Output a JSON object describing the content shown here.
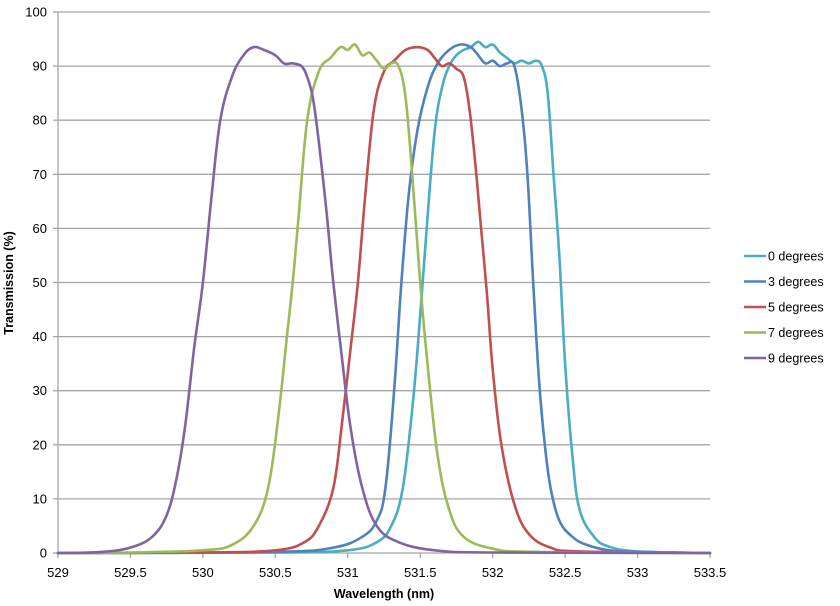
{
  "chart_data": {
    "type": "line",
    "title": "",
    "xlabel": "Wavelength (nm)",
    "ylabel": "Transmission (%)",
    "xlim": [
      529,
      533.5
    ],
    "ylim": [
      0,
      100
    ],
    "x_ticks": [
      529,
      529.5,
      530,
      530.5,
      531,
      531.5,
      532,
      532.5,
      533,
      533.5
    ],
    "x_tick_labels": [
      "529",
      "529.5",
      "530",
      "530.5",
      "531",
      "531.5",
      "532",
      "532.5",
      "533",
      "533.5"
    ],
    "y_ticks": [
      0,
      10,
      20,
      30,
      40,
      50,
      60,
      70,
      80,
      90,
      100
    ],
    "y_tick_labels": [
      "0",
      "10",
      "20",
      "30",
      "40",
      "50",
      "60",
      "70",
      "80",
      "90",
      "100"
    ],
    "grid": {
      "horizontal": true,
      "vertical": false
    },
    "legend_position": "right",
    "series": [
      {
        "name": "0 degrees",
        "color": "#4BACC6",
        "x": [
          529,
          530.5,
          531.0,
          531.2,
          531.3,
          531.38,
          531.45,
          531.5,
          531.55,
          531.6,
          531.65,
          531.7,
          531.75,
          531.8,
          531.85,
          531.9,
          531.95,
          532.0,
          532.05,
          532.1,
          532.15,
          532.2,
          532.25,
          532.3,
          532.34,
          532.38,
          532.42,
          532.46,
          532.5,
          532.55,
          532.6,
          532.7,
          532.8,
          533.0,
          533.5
        ],
        "values": [
          0,
          0.1,
          0.5,
          2,
          5,
          12,
          28,
          44,
          62,
          78,
          86,
          90,
          92,
          93,
          93.5,
          94.5,
          93.5,
          94,
          92.5,
          91.5,
          90.5,
          91,
          90.5,
          91,
          90,
          85,
          70,
          55,
          35,
          18,
          8,
          3,
          1.2,
          0.3,
          0
        ]
      },
      {
        "name": "3 degrees",
        "color": "#4F81BD",
        "x": [
          529,
          530.5,
          530.9,
          531.1,
          531.2,
          531.26,
          531.32,
          531.37,
          531.42,
          531.48,
          531.55,
          531.62,
          531.7,
          531.78,
          531.85,
          531.9,
          531.95,
          532.0,
          532.05,
          532.1,
          532.15,
          532.2,
          532.24,
          532.28,
          532.32,
          532.36,
          532.4,
          532.46,
          532.55,
          532.65,
          532.8,
          533.0,
          533.5
        ],
        "values": [
          0,
          0.2,
          1,
          3,
          6,
          12,
          30,
          50,
          66,
          78,
          86,
          90.5,
          93,
          94,
          93.5,
          92,
          90.5,
          91,
          90,
          90.5,
          90,
          82,
          70,
          50,
          32,
          20,
          12,
          6,
          3,
          1.5,
          0.5,
          0.2,
          0
        ]
      },
      {
        "name": "5 degrees",
        "color": "#C0504D",
        "x": [
          529,
          530.0,
          530.5,
          530.7,
          530.8,
          530.9,
          530.96,
          531.02,
          531.07,
          531.12,
          531.18,
          531.25,
          531.32,
          531.4,
          531.48,
          531.55,
          531.6,
          531.65,
          531.7,
          531.75,
          531.8,
          531.84,
          531.88,
          531.92,
          531.96,
          532.0,
          532.06,
          532.15,
          532.25,
          532.4,
          532.6,
          533.5
        ],
        "values": [
          0,
          0.1,
          0.5,
          2,
          5,
          12,
          24,
          38,
          50,
          66,
          82,
          89,
          91,
          93,
          93.5,
          93,
          91.5,
          90,
          90.5,
          89.5,
          88,
          82,
          72,
          60,
          48,
          34,
          20,
          9,
          3.5,
          1,
          0.3,
          0
        ]
      },
      {
        "name": "7 degrees",
        "color": "#9BBB59",
        "x": [
          529,
          529.5,
          530.0,
          530.2,
          530.35,
          530.45,
          530.52,
          530.58,
          530.62,
          530.66,
          530.72,
          530.8,
          530.88,
          530.95,
          531.0,
          531.05,
          531.1,
          531.15,
          531.2,
          531.25,
          531.3,
          531.35,
          531.4,
          531.45,
          531.5,
          531.55,
          531.62,
          531.7,
          531.8,
          532.0,
          532.3,
          533.5
        ],
        "values": [
          0,
          0.1,
          0.5,
          1.5,
          5,
          12,
          25,
          40,
          50,
          62,
          80,
          89,
          91.5,
          93.5,
          93,
          94,
          92,
          92.5,
          91,
          89.5,
          90.5,
          90,
          84,
          68,
          50,
          35,
          18,
          8,
          3,
          0.8,
          0.2,
          0
        ]
      },
      {
        "name": "9 degrees",
        "color": "#8064A2",
        "x": [
          529,
          529.3,
          529.5,
          529.65,
          529.75,
          529.82,
          529.88,
          529.94,
          530.0,
          530.06,
          530.12,
          530.2,
          530.28,
          530.35,
          530.42,
          530.5,
          530.56,
          530.62,
          530.68,
          530.72,
          530.76,
          530.8,
          530.85,
          530.9,
          530.96,
          531.02,
          531.1,
          531.2,
          531.35,
          531.6,
          532.0,
          533.5
        ],
        "values": [
          0,
          0.2,
          1,
          3,
          7,
          14,
          24,
          38,
          50,
          66,
          80,
          88,
          92,
          93.5,
          93,
          92,
          90.5,
          90.5,
          90,
          88,
          84,
          76,
          64,
          50,
          36,
          23,
          12,
          5,
          2,
          0.5,
          0.1,
          0
        ]
      }
    ]
  }
}
